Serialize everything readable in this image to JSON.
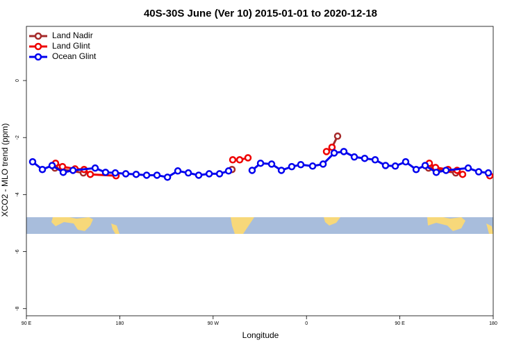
{
  "chart_data": {
    "type": "line",
    "title": "40S-30S June (Ver 10)   2015-01-01 to 2020-12-18",
    "xlabel": "Longitude",
    "ylabel": "XCO2 - MLO trend (ppm)",
    "xlim": [
      90,
      540
    ],
    "xticks": [
      {
        "value": 90,
        "label": "90 E"
      },
      {
        "value": 180,
        "label": "180"
      },
      {
        "value": 270,
        "label": "90 W"
      },
      {
        "value": 360,
        "label": "0"
      },
      {
        "value": 450,
        "label": "90 E"
      },
      {
        "value": 540,
        "label": "180"
      }
    ],
    "ylim": [
      -8.25,
      1.9
    ],
    "yticks": [
      -8,
      -6,
      -4,
      -2,
      0
    ],
    "legend": "top-left",
    "series": [
      {
        "name": "Land Nadir",
        "color": "#a52a2a",
        "x": [
          117.5,
          144.9,
          null,
          288.2,
          null,
          384.6,
          390.0,
          null,
          477.7,
          503.9
        ],
        "values": [
          -3.07,
          -3.24,
          null,
          -3.12,
          null,
          -2.34,
          -1.95,
          null,
          -3.07,
          -3.24
        ]
      },
      {
        "name": "Land Glint",
        "color": "#ee0000",
        "x": [
          118.1,
          124.8,
          136.9,
          145.6,
          151.6,
          176.4,
          null,
          288.9,
          295.6,
          303.6,
          null,
          379.3,
          384.6,
          null,
          478.4,
          484.4,
          496.5,
          505.2,
          510.5,
          null,
          536.7
        ],
        "values": [
          -2.9,
          -3.02,
          -3.1,
          -3.12,
          -3.29,
          -3.34,
          null,
          -2.78,
          -2.78,
          -2.71,
          null,
          -2.49,
          -2.34,
          null,
          -2.9,
          -3.05,
          -3.12,
          -3.15,
          -3.29,
          null,
          -3.34
        ]
      },
      {
        "name": "Ocean Glint",
        "color": "#0000ee",
        "x": [
          96.0,
          105.4,
          114.8,
          125.5,
          134.9,
          156.3,
          166.3,
          175.7,
          185.8,
          195.8,
          205.9,
          215.9,
          226.0,
          236.0,
          246.1,
          256.1,
          266.2,
          276.2,
          284.9,
          null,
          307.6,
          315.7,
          326.4,
          335.8,
          345.8,
          354.5,
          365.9,
          376.0,
          386.7,
          396.0,
          406.1,
          416.1,
          426.2,
          436.2,
          445.6,
          455.6,
          465.7,
          474.4,
          485.1,
          494.5,
          515.9,
          526.0,
          535.3
        ],
        "values": [
          -2.85,
          -3.12,
          -2.98,
          -3.22,
          -3.15,
          -3.07,
          -3.22,
          -3.24,
          -3.27,
          -3.29,
          -3.32,
          -3.32,
          -3.39,
          -3.17,
          -3.24,
          -3.32,
          -3.27,
          -3.27,
          -3.17,
          null,
          -3.15,
          -2.9,
          -2.93,
          -3.15,
          -3.02,
          -2.95,
          -3.0,
          -2.93,
          -2.54,
          -2.49,
          -2.68,
          -2.73,
          -2.78,
          -2.98,
          -3.0,
          -2.85,
          -3.12,
          -2.98,
          -3.22,
          -3.15,
          -3.07,
          -3.2,
          -3.24
        ]
      }
    ]
  }
}
